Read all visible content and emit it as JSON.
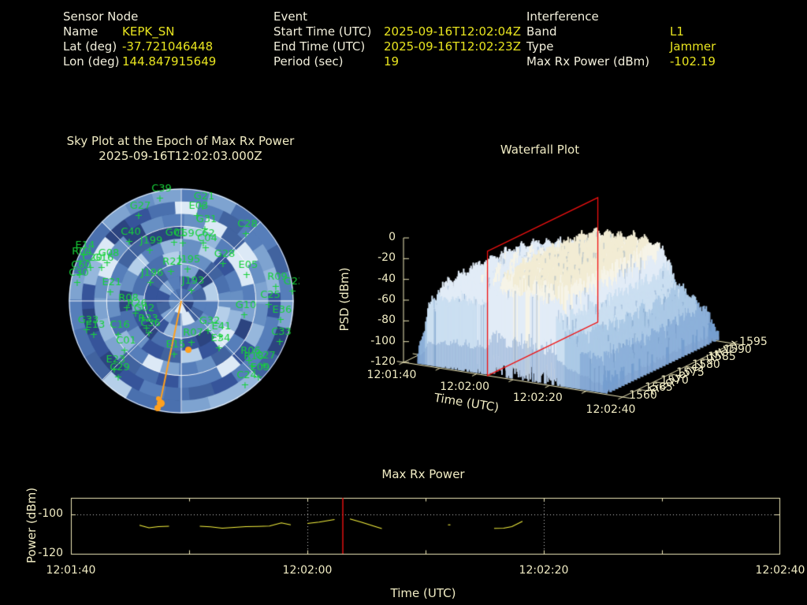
{
  "header": {
    "sensor_node": {
      "title": "Sensor Node",
      "rows": [
        [
          "Name",
          "KEPK_SN"
        ],
        [
          "Lat (deg)",
          "-37.721046448"
        ],
        [
          "Lon (deg)",
          "144.847915649"
        ]
      ]
    },
    "event": {
      "title": "Event",
      "rows": [
        [
          "Start Time (UTC)",
          "2025-09-16T12:02:04Z"
        ],
        [
          "End Time (UTC)",
          "2025-09-16T12:02:23Z"
        ],
        [
          "Period (sec)",
          "19"
        ]
      ]
    },
    "interference": {
      "title": "Interference",
      "rows": [
        [
          "Band",
          "L1"
        ],
        [
          "Type",
          "Jammer"
        ],
        [
          "Max Rx Power (dBm)",
          "-102.19"
        ]
      ]
    }
  },
  "colors": {
    "background": "#000000",
    "label_text": "#f2efdc",
    "value_text": "#e8e41f",
    "plot_text": "#f1ecc4",
    "axis_khaki": "#efe8b8",
    "satellite_green": "#17d23a",
    "event_marker_red": "#f01010",
    "jammer_orange": "#ffa01e",
    "series_yellow": "#f6f23e",
    "grid_white": "#ffffff"
  },
  "chart_data": [
    {
      "type": "heatmap",
      "id": "sky_plot",
      "title": "Sky Plot at the Epoch of Max Rx Power",
      "subtitle": "2025-09-16T12:02:03.000Z",
      "rings_elevation_deg": [
        0,
        30,
        60
      ],
      "azimuth_spokes_deg": 45,
      "palette": "blue",
      "satellites": [
        {
          "id": "C39",
          "x": 125,
          "y": 10
        },
        {
          "id": "G27",
          "x": 98,
          "y": 32
        },
        {
          "id": "G21",
          "x": 179,
          "y": 20
        },
        {
          "id": "E03",
          "x": 172,
          "y": 32
        },
        {
          "id": "G31",
          "x": 182,
          "y": 49
        },
        {
          "id": "C28",
          "x": 234,
          "y": 55
        },
        {
          "id": "C40",
          "x": 86,
          "y": 65
        },
        {
          "id": "J199",
          "x": 112,
          "y": 76
        },
        {
          "id": "G01",
          "x": 143,
          "y": 66
        },
        {
          "id": "C59",
          "x": 154,
          "y": 67
        },
        {
          "id": "C62",
          "x": 180,
          "y": 67
        },
        {
          "id": "C04",
          "x": 183,
          "y": 73
        },
        {
          "id": "G28",
          "x": 205,
          "y": 93
        },
        {
          "id": "R22",
          "x": 139,
          "y": 103
        },
        {
          "id": "J195",
          "x": 160,
          "y": 100
        },
        {
          "id": "E05",
          "x": 235,
          "y": 107
        },
        {
          "id": "J196",
          "x": 113,
          "y": 117
        },
        {
          "id": "J193",
          "x": 165,
          "y": 127
        },
        {
          "id": "E21",
          "x": 62,
          "y": 129
        },
        {
          "id": "R08",
          "x": 83,
          "y": 149
        },
        {
          "id": "E14",
          "x": 28,
          "y": 82
        },
        {
          "id": "R04",
          "x": 24,
          "y": 90
        },
        {
          "id": "G08",
          "x": 58,
          "y": 92
        },
        {
          "id": "C20",
          "x": 37,
          "y": 98
        },
        {
          "id": "G16",
          "x": 51,
          "y": 98
        },
        {
          "id": "C60",
          "x": 23,
          "y": 107
        },
        {
          "id": "C30",
          "x": 20,
          "y": 117
        },
        {
          "id": "C25",
          "x": 263,
          "y": 145
        },
        {
          "id": "G23",
          "x": 293,
          "y": 128
        },
        {
          "id": "R09",
          "x": 272,
          "y": 122
        },
        {
          "id": "G10",
          "x": 232,
          "y": 158
        },
        {
          "id": "E36",
          "x": 278,
          "y": 164
        },
        {
          "id": "C33",
          "x": 277,
          "y": 192
        },
        {
          "id": "G33",
          "x": 32,
          "y": 177
        },
        {
          "id": "E13",
          "x": 41,
          "y": 183
        },
        {
          "id": "C16",
          "x": 72,
          "y": 183
        },
        {
          "id": "C36",
          "x": 111,
          "y": 181
        },
        {
          "id": "R23",
          "x": 108,
          "y": 175
        },
        {
          "id": "G02",
          "x": 103,
          "y": 162
        },
        {
          "id": "R26",
          "x": 94,
          "y": 156
        },
        {
          "id": "G32",
          "x": 186,
          "y": 178
        },
        {
          "id": "E41",
          "x": 201,
          "y": 185
        },
        {
          "id": "R07",
          "x": 165,
          "y": 193
        },
        {
          "id": "E34",
          "x": 200,
          "y": 200
        },
        {
          "id": "C01",
          "x": 80,
          "y": 203
        },
        {
          "id": "E15",
          "x": 143,
          "y": 208
        },
        {
          "id": "E23",
          "x": 67,
          "y": 227
        },
        {
          "id": "C29",
          "x": 72,
          "y": 237
        },
        {
          "id": "R06",
          "x": 238,
          "y": 216
        },
        {
          "id": "R18",
          "x": 242,
          "y": 223
        },
        {
          "id": "C27",
          "x": 257,
          "y": 222
        },
        {
          "id": "E09",
          "x": 250,
          "y": 237
        },
        {
          "id": "C24",
          "x": 233,
          "y": 247
        }
      ],
      "jammer": {
        "bearing_line_end": [
          123,
          282
        ],
        "blob": [
          121,
          281
        ],
        "aux_dot": [
          159,
          214
        ]
      }
    },
    {
      "type": "surface",
      "id": "waterfall",
      "title": "Waterfall Plot",
      "xlabel": "Time (UTC)",
      "ylabel": "Frequency (MHz)",
      "zlabel": "PSD (dBm)",
      "time_ticks": [
        "12:01:40",
        "12:02:00",
        "12:02:20",
        "12:02:40"
      ],
      "freq_ticks": [
        1560,
        1565,
        1570,
        1575,
        1580,
        1585,
        1590,
        1595
      ],
      "psd_ticks": [
        0,
        -20,
        -40,
        -60,
        -80,
        -100,
        -120
      ],
      "psd_range": [
        -120,
        0
      ],
      "freq_range_mhz": [
        1560,
        1595
      ],
      "time_range_s": [
        0,
        60
      ],
      "data_time_range_s": [
        4,
        56
      ],
      "event_marker": {
        "time": "12:02:03",
        "time_s": 23,
        "color": "#f01010"
      },
      "ridge_profile_dbm": [
        [
          4,
          -95
        ],
        [
          7,
          -45
        ],
        [
          15,
          -40
        ],
        [
          23,
          -38
        ],
        [
          25,
          -23
        ],
        [
          41,
          -23
        ],
        [
          44,
          -55
        ],
        [
          50,
          -67
        ],
        [
          56,
          -97
        ]
      ]
    },
    {
      "type": "line",
      "id": "max_rx_power",
      "title": "Max Rx Power",
      "xlabel": "Time (UTC)",
      "ylabel": "Power (dBm)",
      "x_ticks": [
        "12:01:40",
        "12:02:00",
        "12:02:20",
        "12:02:40"
      ],
      "x_tick_s": [
        0,
        20,
        40,
        60
      ],
      "y_ticks": [
        -100,
        -120
      ],
      "ylim": [
        -120,
        -91.6
      ],
      "x_range_s": [
        0,
        60
      ],
      "grid_x_s": [
        20,
        40
      ],
      "grid_y": [
        -100
      ],
      "epoch_marker_s": 23,
      "segments": [
        [
          [
            5.8,
            -105.5
          ],
          [
            6.6,
            -106.8
          ],
          [
            7.4,
            -106.2
          ],
          [
            8.3,
            -106.0
          ]
        ],
        [
          [
            10.9,
            -106.0
          ],
          [
            11.8,
            -106.3
          ],
          [
            12.8,
            -107.0
          ],
          [
            13.8,
            -106.6
          ],
          [
            14.8,
            -106.2
          ],
          [
            15.8,
            -106.1
          ],
          [
            16.8,
            -105.9
          ],
          [
            17.8,
            -104.3
          ],
          [
            18.6,
            -105.3
          ]
        ],
        [
          [
            20.0,
            -104.6
          ],
          [
            21.0,
            -103.9
          ],
          [
            22.3,
            -102.6
          ]
        ],
        [
          [
            23.6,
            -102.3
          ],
          [
            24.6,
            -104.0
          ],
          [
            25.6,
            -105.9
          ],
          [
            26.3,
            -107.2
          ]
        ],
        [
          [
            31.9,
            -105.3
          ],
          [
            32.1,
            -105.3
          ]
        ],
        [
          [
            35.8,
            -107.1
          ],
          [
            36.6,
            -107.0
          ],
          [
            37.3,
            -106.2
          ],
          [
            38.2,
            -103.5
          ]
        ]
      ]
    }
  ]
}
